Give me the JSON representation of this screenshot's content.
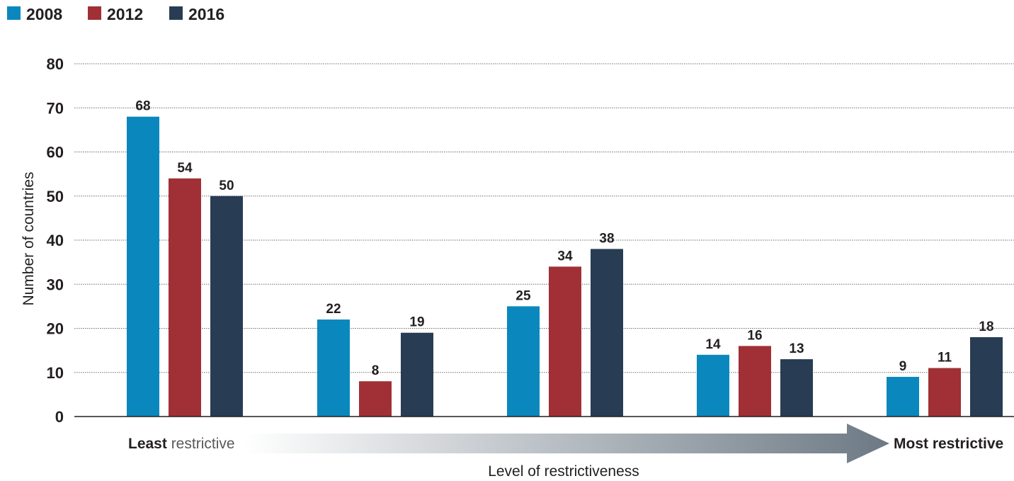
{
  "chart_data": {
    "type": "bar",
    "categories": [
      "",
      "",
      "",
      "",
      ""
    ],
    "series": [
      {
        "name": "2008",
        "color": "#0a88bd",
        "values": [
          68,
          22,
          25,
          14,
          9
        ]
      },
      {
        "name": "2012",
        "color": "#a03035",
        "values": [
          54,
          8,
          34,
          16,
          11
        ]
      },
      {
        "name": "2016",
        "color": "#283c54",
        "values": [
          50,
          19,
          38,
          13,
          18
        ]
      }
    ],
    "xlabel": "Level of restrictiveness",
    "ylabel": "Number of countries",
    "ylim": [
      0,
      80
    ],
    "yticks": [
      0,
      10,
      20,
      30,
      40,
      50,
      60,
      70,
      80
    ],
    "grid": true,
    "legend_position": "top-left",
    "data_labels": true,
    "arrow": {
      "start_label_bold": "Least",
      "start_label_rest": " restrictive",
      "end_label": "Most restrictive",
      "color_start": "#ffffff",
      "color_end": "#6c7984"
    }
  }
}
